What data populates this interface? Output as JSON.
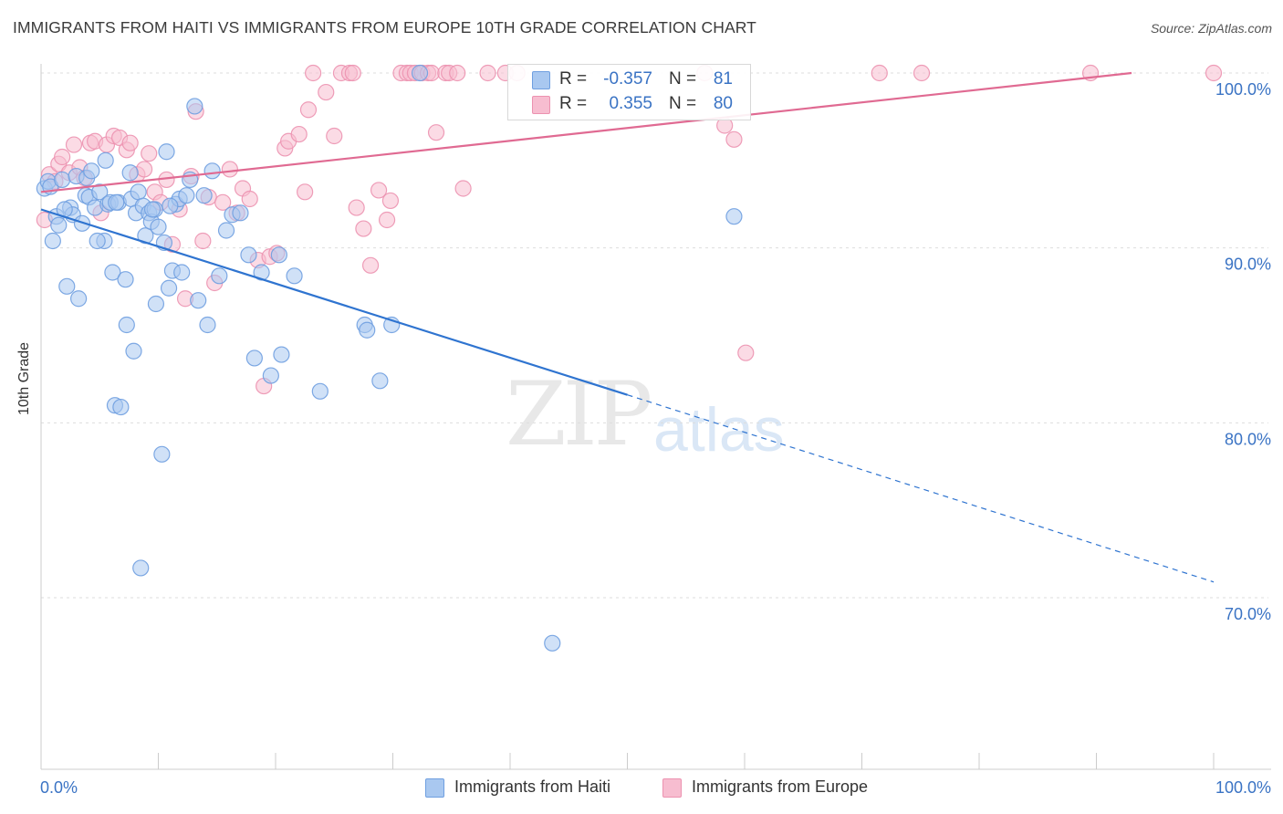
{
  "title": "IMMIGRANTS FROM HAITI VS IMMIGRANTS FROM EUROPE 10TH GRADE CORRELATION CHART",
  "source": "Source: ZipAtlas.com",
  "watermark": {
    "zip": "ZIP",
    "atlas": "atlas"
  },
  "legend_top": {
    "rows": [
      {
        "r_label": "R =",
        "r_value": "-0.357",
        "n_label": "N =",
        "n_value": "81"
      },
      {
        "r_label": "R =",
        "r_value": "0.355",
        "n_label": "N =",
        "n_value": "80"
      }
    ]
  },
  "legend_bottom": {
    "haiti": "Immigrants from Haiti",
    "europe": "Immigrants from Europe"
  },
  "colors": {
    "haiti_fill": "#a9c8f0",
    "haiti_stroke": "#6f9fe0",
    "haiti_line": "#2f74d0",
    "europe_fill": "#f7bdd0",
    "europe_stroke": "#ec92b0",
    "europe_line": "#e06a92",
    "tick_label": "#3a73c4",
    "grid": "#dddddd"
  },
  "chart_data": {
    "type": "scatter",
    "ylabel": "10th Grade",
    "xlim": [
      0,
      100
    ],
    "ylim": [
      60,
      102
    ],
    "x_tick_labels": [
      "0.0%",
      "100.0%"
    ],
    "y_ticks": [
      70,
      80,
      90,
      100
    ],
    "y_tick_labels": [
      "70.0%",
      "80.0%",
      "90.0%",
      "100.0%"
    ],
    "grid": true,
    "series": [
      {
        "name": "Immigrants from Haiti",
        "points": [
          [
            0.3,
            93.4
          ],
          [
            0.6,
            93.8
          ],
          [
            0.8,
            93.5
          ],
          [
            1.0,
            90.4
          ],
          [
            1.3,
            91.8
          ],
          [
            1.5,
            91.3
          ],
          [
            1.8,
            93.9
          ],
          [
            2.2,
            87.8
          ],
          [
            2.5,
            92.3
          ],
          [
            2.7,
            91.9
          ],
          [
            3.0,
            94.1
          ],
          [
            3.2,
            87.1
          ],
          [
            3.5,
            91.4
          ],
          [
            3.8,
            93.0
          ],
          [
            3.9,
            94.0
          ],
          [
            4.1,
            92.9
          ],
          [
            4.3,
            94.4
          ],
          [
            4.6,
            92.3
          ],
          [
            5.0,
            93.2
          ],
          [
            5.4,
            90.4
          ],
          [
            5.5,
            95.0
          ],
          [
            5.7,
            92.5
          ],
          [
            5.9,
            92.6
          ],
          [
            6.1,
            88.6
          ],
          [
            6.3,
            81.0
          ],
          [
            6.6,
            92.6
          ],
          [
            6.8,
            80.9
          ],
          [
            7.2,
            88.2
          ],
          [
            7.3,
            85.6
          ],
          [
            7.6,
            94.3
          ],
          [
            7.7,
            92.8
          ],
          [
            7.9,
            84.1
          ],
          [
            8.1,
            92.0
          ],
          [
            8.3,
            93.2
          ],
          [
            8.5,
            71.7
          ],
          [
            8.7,
            92.4
          ],
          [
            8.9,
            90.7
          ],
          [
            9.2,
            92.0
          ],
          [
            9.4,
            91.5
          ],
          [
            9.7,
            92.2
          ],
          [
            9.8,
            86.8
          ],
          [
            10.0,
            91.2
          ],
          [
            10.3,
            78.2
          ],
          [
            10.5,
            90.3
          ],
          [
            10.7,
            95.5
          ],
          [
            10.9,
            87.7
          ],
          [
            11.2,
            88.7
          ],
          [
            11.5,
            92.5
          ],
          [
            11.8,
            92.8
          ],
          [
            12.0,
            88.6
          ],
          [
            12.4,
            93.0
          ],
          [
            12.7,
            93.9
          ],
          [
            13.1,
            98.1
          ],
          [
            13.4,
            87.0
          ],
          [
            13.9,
            93.0
          ],
          [
            14.2,
            85.6
          ],
          [
            14.6,
            94.4
          ],
          [
            15.2,
            88.4
          ],
          [
            15.8,
            91.0
          ],
          [
            16.3,
            91.9
          ],
          [
            17.7,
            89.6
          ],
          [
            18.2,
            83.7
          ],
          [
            18.8,
            88.6
          ],
          [
            19.6,
            82.7
          ],
          [
            20.3,
            89.6
          ],
          [
            20.5,
            83.9
          ],
          [
            21.6,
            88.4
          ],
          [
            23.8,
            81.8
          ],
          [
            27.6,
            85.6
          ],
          [
            27.8,
            85.3
          ],
          [
            28.9,
            82.4
          ],
          [
            29.9,
            85.6
          ],
          [
            32.3,
            100.0
          ],
          [
            43.6,
            67.4
          ],
          [
            59.1,
            91.8
          ],
          [
            9.5,
            92.2
          ],
          [
            4.8,
            90.4
          ],
          [
            6.4,
            92.6
          ],
          [
            11.0,
            92.4
          ],
          [
            2.0,
            92.2
          ],
          [
            17.0,
            92.0
          ]
        ],
        "trend": {
          "x0": 0,
          "y0": 92.2,
          "x1": 50,
          "y1": 81.6,
          "dash_to_x": 100,
          "dash_to_y": 70.9
        }
      },
      {
        "name": "Immigrants from Europe",
        "points": [
          [
            0.3,
            91.6
          ],
          [
            0.7,
            94.2
          ],
          [
            1.2,
            93.8
          ],
          [
            1.5,
            94.8
          ],
          [
            1.8,
            95.2
          ],
          [
            2.4,
            94.3
          ],
          [
            2.8,
            95.9
          ],
          [
            3.3,
            94.6
          ],
          [
            3.7,
            94.0
          ],
          [
            4.2,
            96.0
          ],
          [
            4.6,
            96.1
          ],
          [
            5.1,
            92.0
          ],
          [
            5.6,
            95.9
          ],
          [
            6.2,
            96.4
          ],
          [
            6.7,
            96.3
          ],
          [
            7.3,
            95.6
          ],
          [
            7.6,
            96.0
          ],
          [
            8.2,
            94.2
          ],
          [
            8.8,
            94.5
          ],
          [
            9.2,
            95.4
          ],
          [
            9.7,
            93.2
          ],
          [
            10.2,
            92.6
          ],
          [
            10.7,
            93.9
          ],
          [
            11.2,
            90.2
          ],
          [
            11.8,
            92.2
          ],
          [
            12.3,
            87.1
          ],
          [
            12.8,
            94.1
          ],
          [
            13.2,
            97.8
          ],
          [
            13.8,
            90.4
          ],
          [
            14.3,
            92.9
          ],
          [
            14.8,
            88.0
          ],
          [
            15.5,
            92.6
          ],
          [
            16.1,
            94.5
          ],
          [
            16.7,
            92.0
          ],
          [
            17.2,
            93.4
          ],
          [
            17.8,
            92.8
          ],
          [
            18.5,
            89.3
          ],
          [
            19.0,
            82.1
          ],
          [
            19.5,
            89.5
          ],
          [
            20.1,
            89.7
          ],
          [
            20.8,
            95.7
          ],
          [
            21.1,
            96.1
          ],
          [
            22.0,
            96.5
          ],
          [
            22.5,
            93.2
          ],
          [
            22.8,
            97.9
          ],
          [
            23.2,
            100.0
          ],
          [
            24.3,
            98.9
          ],
          [
            25.0,
            96.4
          ],
          [
            25.6,
            100.0
          ],
          [
            26.3,
            100.0
          ],
          [
            26.6,
            100.0
          ],
          [
            26.9,
            92.3
          ],
          [
            27.5,
            91.1
          ],
          [
            28.1,
            89.0
          ],
          [
            28.8,
            93.3
          ],
          [
            29.5,
            91.6
          ],
          [
            29.8,
            92.7
          ],
          [
            30.7,
            100.0
          ],
          [
            31.2,
            100.0
          ],
          [
            31.5,
            100.0
          ],
          [
            31.9,
            100.0
          ],
          [
            32.5,
            100.0
          ],
          [
            33.0,
            100.0
          ],
          [
            33.3,
            100.0
          ],
          [
            33.7,
            96.6
          ],
          [
            34.5,
            100.0
          ],
          [
            34.8,
            100.0
          ],
          [
            35.5,
            100.0
          ],
          [
            36.0,
            93.4
          ],
          [
            38.1,
            100.0
          ],
          [
            39.6,
            100.0
          ],
          [
            40.6,
            100.0
          ],
          [
            56.6,
            100.0
          ],
          [
            58.3,
            97.0
          ],
          [
            59.1,
            96.2
          ],
          [
            60.1,
            84.0
          ],
          [
            71.5,
            100.0
          ],
          [
            75.1,
            100.0
          ],
          [
            89.5,
            100.0
          ],
          [
            100.0,
            100.0
          ]
        ],
        "trend": {
          "x0": 0,
          "y0": 93.2,
          "x1": 93,
          "y1": 100.0
        }
      }
    ]
  }
}
